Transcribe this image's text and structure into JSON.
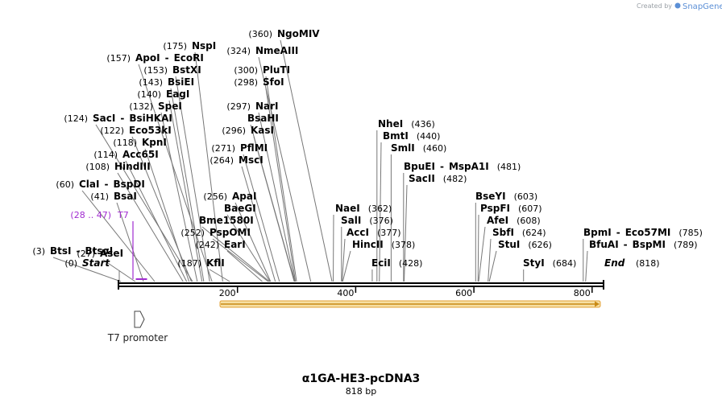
{
  "branding": {
    "created_by": "Created by",
    "app": "SnapGene"
  },
  "construct": {
    "name": "α1GA-HE3-pcDNA3",
    "length": "818 bp",
    "length_bp": 818
  },
  "colors": {
    "primer": "#a12bd0",
    "orf_fill": "#f6dfa4",
    "orf_stroke": "#e3a036",
    "orf_arrow": "#c98a15"
  },
  "ends": {
    "start_pos": "(0)",
    "start_label": "Start",
    "end_label": "End",
    "end_pos": "(818)"
  },
  "primer": {
    "pos": "(28 .. 47)",
    "name": "T7",
    "start": 28,
    "end": 47
  },
  "feature": {
    "name": "T7 promoter"
  },
  "ticks": [
    {
      "label": "200",
      "value": 200
    },
    {
      "label": "400",
      "value": 400
    },
    {
      "label": "600",
      "value": 600
    },
    {
      "label": "800",
      "value": 800
    }
  ],
  "orf": {
    "start": 170,
    "end": 810
  },
  "sites": [
    {
      "pos": 3,
      "pl": "(3)",
      "names": [
        "BtsI",
        "BtsαI"
      ]
    },
    {
      "pos": 27,
      "pl": "(27)",
      "names": [
        "AseI"
      ]
    },
    {
      "pos": 41,
      "pl": "(41)",
      "names": [
        "BsaI"
      ]
    },
    {
      "pos": 60,
      "pl": "(60)",
      "names": [
        "ClaI",
        "BspDI"
      ]
    },
    {
      "pos": 108,
      "pl": "(108)",
      "names": [
        "HindIII"
      ]
    },
    {
      "pos": 114,
      "pl": "(114)",
      "names": [
        "Acc65I"
      ]
    },
    {
      "pos": 118,
      "pl": "(118)",
      "names": [
        "KpnI"
      ]
    },
    {
      "pos": 122,
      "pl": "(122)",
      "names": [
        "Eco53kI"
      ]
    },
    {
      "pos": 124,
      "pl": "(124)",
      "names": [
        "SacI",
        "BsiHKAI"
      ]
    },
    {
      "pos": 132,
      "pl": "(132)",
      "names": [
        "SpeI"
      ]
    },
    {
      "pos": 140,
      "pl": "(140)",
      "names": [
        "EagI"
      ]
    },
    {
      "pos": 143,
      "pl": "(143)",
      "names": [
        "BsiEI"
      ]
    },
    {
      "pos": 153,
      "pl": "(153)",
      "names": [
        "BstXI"
      ]
    },
    {
      "pos": 157,
      "pl": "(157)",
      "names": [
        "ApoI",
        "EcoRI"
      ]
    },
    {
      "pos": 175,
      "pl": "(175)",
      "names": [
        "NspI"
      ]
    },
    {
      "pos": 187,
      "pl": "(187)",
      "names": [
        "KflI"
      ]
    },
    {
      "pos": 242,
      "pl": "(242)",
      "names": [
        "EarI"
      ]
    },
    {
      "pos": 252,
      "pl": "(252)",
      "names": [
        "PspOMI"
      ]
    },
    {
      "pos": 254,
      "pl": "",
      "names": [
        "Bme1580I"
      ]
    },
    {
      "pos": 255,
      "pl": "",
      "names": [
        "BaeGI"
      ]
    },
    {
      "pos": 256,
      "pl": "(256)",
      "names": [
        "ApaI"
      ]
    },
    {
      "pos": 264,
      "pl": "(264)",
      "names": [
        "MscI"
      ]
    },
    {
      "pos": 271,
      "pl": "(271)",
      "names": [
        "PflMI"
      ]
    },
    {
      "pos": 296,
      "pl": "(296)",
      "names": [
        "KasI"
      ]
    },
    {
      "pos": 296.5,
      "pl": "",
      "names": [
        "BsaHI"
      ]
    },
    {
      "pos": 297,
      "pl": "(297)",
      "names": [
        "NarI"
      ]
    },
    {
      "pos": 298,
      "pl": "(298)",
      "names": [
        "SfoI"
      ]
    },
    {
      "pos": 300,
      "pl": "(300)",
      "names": [
        "PluTI"
      ]
    },
    {
      "pos": 324,
      "pl": "(324)",
      "names": [
        "NmeAIII"
      ]
    },
    {
      "pos": 360,
      "pl": "(360)",
      "names": [
        "NgoMIV"
      ]
    },
    {
      "pos": 362,
      "pl": "(362)",
      "names": [
        "NaeI"
      ]
    },
    {
      "pos": 376,
      "pl": "(376)",
      "names": [
        "SalI"
      ]
    },
    {
      "pos": 377,
      "pl": "(377)",
      "names": [
        "AccI"
      ]
    },
    {
      "pos": 378,
      "pl": "(378)",
      "names": [
        "HincII"
      ]
    },
    {
      "pos": 428,
      "pl": "(428)",
      "names": [
        "EciI"
      ]
    },
    {
      "pos": 436,
      "pl": "(436)",
      "names": [
        "NheI"
      ]
    },
    {
      "pos": 440,
      "pl": "(440)",
      "names": [
        "BmtI"
      ]
    },
    {
      "pos": 460,
      "pl": "(460)",
      "names": [
        "SmlI"
      ]
    },
    {
      "pos": 481,
      "pl": "(481)",
      "names": [
        "BpuEI",
        "MspA1I"
      ]
    },
    {
      "pos": 482,
      "pl": "(482)",
      "names": [
        "SacII"
      ]
    },
    {
      "pos": 603,
      "pl": "(603)",
      "names": [
        "BseYI"
      ]
    },
    {
      "pos": 607,
      "pl": "(607)",
      "names": [
        "PspFI"
      ]
    },
    {
      "pos": 608,
      "pl": "(608)",
      "names": [
        "AfeI"
      ]
    },
    {
      "pos": 624,
      "pl": "(624)",
      "names": [
        "SbfI"
      ]
    },
    {
      "pos": 626,
      "pl": "(626)",
      "names": [
        "StuI"
      ]
    },
    {
      "pos": 684,
      "pl": "(684)",
      "names": [
        "StyI"
      ]
    },
    {
      "pos": 785,
      "pl": "(785)",
      "names": [
        "BpmI",
        "Eco57MI"
      ]
    },
    {
      "pos": 789,
      "pl": "(789)",
      "names": [
        "BfuAI",
        "BspMI"
      ]
    }
  ]
}
